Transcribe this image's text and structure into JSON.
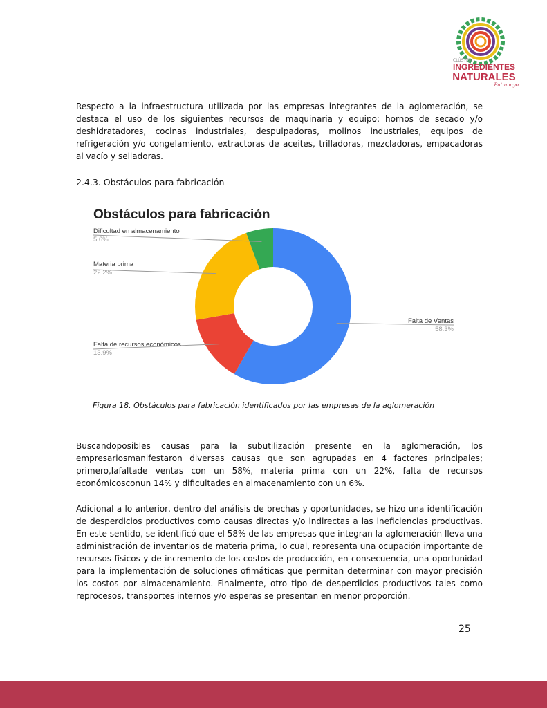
{
  "logo": {
    "line1": "CLÚSTER",
    "line2": "INGREDIENTES",
    "line3": "NATURALES",
    "line4": "Putumayo"
  },
  "paragraphs": [
    "Respecto a la infraestructura utilizada por las empresas integrantes de la aglomeración, se destaca el uso de los siguientes recursos de maquinaria y equipo: hornos de secado y/o deshidratadores, cocinas industriales, despulpadoras, molinos industriales, equipos de refrigeración y/o congelamiento, extractoras de aceites, trilladoras, mezcladoras, empacadoras al vacío y selladoras.",
    "Buscandoposibles causas para la subutilización presente en la aglomeración, los empresariosmanifestaron diversas causas que son agrupadas en 4 factores principales; primero,lafaltade ventas con un 58%, materia prima con un 22%, falta de recursos económicosconun 14% y dificultades en almacenamiento con un 6%.",
    "Adicional a lo anterior, dentro del análisis de brechas y oportunidades, se hizo una identificación de desperdicios productivos como causas directas y/o indirectas a las ineficiencias productivas. En este sentido, se identificó que el 58% de las empresas que integran la aglomeración lleva una administración de inventarios de materia prima, lo cual, representa una ocupación importante de recursos físicos y de incremento de los costos de producción, en consecuencia, una oportunidad para la implementación de soluciones ofimáticas que permitan determinar con mayor precisión los costos por almacenamiento. Finalmente, otro tipo de desperdicios productivos tales como reprocesos, transportes internos y/o esperas se presentan en menor proporción."
  ],
  "section_heading": "2.4.3. Obstáculos para fabricación",
  "caption": "Figura 18. Obstáculos para fabricación identificados por las empresas de la aglomeración",
  "page_number": "25",
  "footer_color": "#b5384f",
  "chart_data": {
    "type": "pie",
    "donut": true,
    "title": "Obstáculos para fabricación",
    "slices": [
      {
        "label": "Falta de Ventas",
        "value": 58.3,
        "display": "58.3%",
        "color": "#4285f4"
      },
      {
        "label": "Falta de recursos económicos",
        "value": 13.9,
        "display": "13.9%",
        "color": "#ea4335"
      },
      {
        "label": "Materia prima",
        "value": 22.2,
        "display": "22.2%",
        "color": "#fbbc04"
      },
      {
        "label": "Dificultad en almacenamiento",
        "value": 5.6,
        "display": "5.6%",
        "color": "#34a853"
      }
    ]
  }
}
